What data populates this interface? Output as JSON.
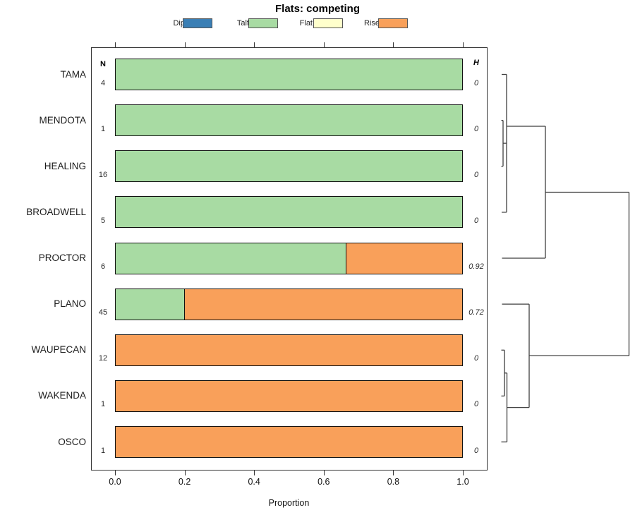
{
  "title": "Flats: competing",
  "legend": {
    "items": [
      {
        "label": "Dip",
        "color": "#3a7fb5"
      },
      {
        "label": "Talf",
        "color": "#a8dba3"
      },
      {
        "label": "Flat",
        "color": "#ffffcc"
      },
      {
        "label": "Rise",
        "color": "#f9a05a"
      }
    ]
  },
  "columns": {
    "n_header": "N",
    "h_header": "H"
  },
  "chart_data": {
    "type": "bar",
    "orientation": "horizontal-stacked",
    "title": "Flats: competing",
    "xlabel": "Proportion",
    "xlim": [
      0,
      1
    ],
    "xticks": [
      0.0,
      0.2,
      0.4,
      0.6,
      0.8,
      1.0
    ],
    "xtick_labels": [
      "0.0",
      "0.2",
      "0.4",
      "0.6",
      "0.8",
      "1.0"
    ],
    "categories": [
      "TAMA",
      "MENDOTA",
      "HEALING",
      "BROADWELL",
      "PROCTOR",
      "PLANO",
      "WAUPECAN",
      "WAKENDA",
      "OSCO"
    ],
    "series": [
      {
        "name": "Dip",
        "color": "#3a7fb5",
        "values": [
          0,
          0,
          0,
          0,
          0,
          0,
          0,
          0,
          0
        ]
      },
      {
        "name": "Talf",
        "color": "#a8dba3",
        "values": [
          1,
          1,
          1,
          1,
          0.667,
          0.2,
          0,
          0,
          0
        ]
      },
      {
        "name": "Flat",
        "color": "#ffffcc",
        "values": [
          0,
          0,
          0,
          0,
          0,
          0,
          0,
          0,
          0
        ]
      },
      {
        "name": "Rise",
        "color": "#f9a05a",
        "values": [
          0,
          0,
          0,
          0,
          0.333,
          0.8,
          1,
          1,
          1
        ]
      }
    ],
    "n_values": [
      "4",
      "1",
      "16",
      "5",
      "6",
      "45",
      "12",
      "1",
      "1"
    ],
    "h_values": [
      "0",
      "0",
      "0",
      "0",
      "0.92",
      "0.72",
      "0",
      "0",
      "0"
    ],
    "dendrogram": {
      "color": "#3f3f3f",
      "segments": [
        [
          711,
          105.5,
          718,
          105.5
        ],
        [
          710.5,
          170.6,
          713,
          170.6
        ],
        [
          710.5,
          235.7,
          713,
          235.7
        ],
        [
          713,
          170.6,
          713,
          235.7
        ],
        [
          713,
          203.1,
          718,
          203.1
        ],
        [
          711,
          300.9,
          718,
          300.9
        ],
        [
          718,
          105.5,
          718,
          300.9
        ],
        [
          718,
          179,
          773,
          179
        ],
        [
          711.5,
          366,
          773,
          366
        ],
        [
          773,
          179,
          773,
          366
        ],
        [
          773,
          272.5,
          891.5,
          272.5
        ],
        [
          711.5,
          431.1,
          750,
          431.1
        ],
        [
          710.5,
          496.3,
          715,
          496.3
        ],
        [
          710.5,
          561.4,
          715,
          561.4
        ],
        [
          715,
          496.3,
          715,
          561.4
        ],
        [
          715,
          528.8,
          718.5,
          528.8
        ],
        [
          710.5,
          626.5,
          718.5,
          626.5
        ],
        [
          718.5,
          528.8,
          718.5,
          626.5
        ],
        [
          718.5,
          577.6,
          750,
          577.6
        ],
        [
          750,
          431.1,
          750,
          577.6
        ],
        [
          750,
          504.4,
          891.5,
          504.4
        ],
        [
          891.5,
          272.5,
          891.5,
          504.4
        ]
      ]
    }
  }
}
